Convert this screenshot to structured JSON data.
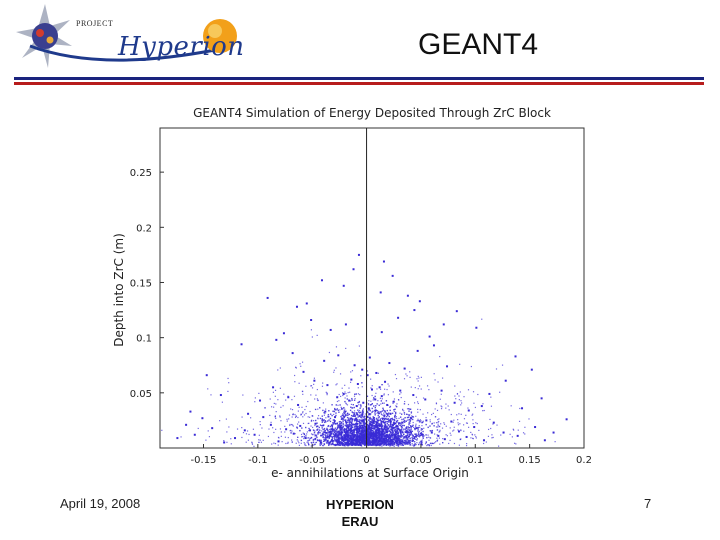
{
  "slide": {
    "title": "GEANT4",
    "logo": {
      "project_text": "PROJECT",
      "name_text": "Hyperion"
    },
    "rule_colors": [
      "#1a237e",
      "#b71c1c"
    ]
  },
  "footer": {
    "date": "April 19, 2008",
    "center_line1": "HYPERION",
    "center_line2": "ERAU",
    "page_number": "7"
  },
  "chart_data": {
    "type": "scatter",
    "title": "GEANT4 Simulation of Energy Deposited Through ZrC Block",
    "xlabel": "e- annihilations at Surface Origin",
    "ylabel": "Depth into ZrC (m)",
    "xlim": [
      -0.19,
      0.2
    ],
    "ylim": [
      0,
      0.29
    ],
    "xticks": [
      -0.15,
      -0.1,
      -0.05,
      0,
      0.05,
      0.1,
      0.15,
      0.2
    ],
    "xtick_labels": [
      "-0.15",
      "-0.1",
      "-0.05",
      "0",
      "0.05",
      "0.1",
      "0.15",
      "0.2"
    ],
    "yticks": [
      0.05,
      0.1,
      0.15,
      0.2,
      0.25
    ],
    "ytick_labels": [
      "0.05",
      "0.1",
      "0.15",
      "0.2",
      "0.25"
    ],
    "point_color": "#3a2bd6",
    "reference_line_x": 0,
    "grid": false,
    "series": [
      {
        "points": [
          [
            0.0,
            0.012
          ],
          [
            0.004,
            0.021
          ],
          [
            -0.006,
            0.008
          ],
          [
            0.011,
            0.017
          ],
          [
            -0.013,
            0.026
          ],
          [
            0.018,
            0.009
          ],
          [
            -0.019,
            0.014
          ],
          [
            0.022,
            0.031
          ],
          [
            -0.024,
            0.019
          ],
          [
            0.028,
            0.006
          ],
          [
            -0.029,
            0.028
          ],
          [
            0.033,
            0.023
          ],
          [
            -0.034,
            0.011
          ],
          [
            0.037,
            0.015
          ],
          [
            -0.038,
            0.033
          ],
          [
            0.041,
            0.027
          ],
          [
            -0.042,
            0.005
          ],
          [
            0.046,
            0.018
          ],
          [
            -0.047,
            0.022
          ],
          [
            0.051,
            0.012
          ],
          [
            -0.052,
            0.016
          ],
          [
            0.055,
            0.025
          ],
          [
            -0.056,
            0.009
          ],
          [
            0.06,
            0.014
          ],
          [
            -0.061,
            0.02
          ],
          [
            0.002,
            0.036
          ],
          [
            -0.003,
            0.041
          ],
          [
            0.008,
            0.044
          ],
          [
            -0.009,
            0.038
          ],
          [
            0.014,
            0.047
          ],
          [
            -0.016,
            0.043
          ],
          [
            0.019,
            0.039
          ],
          [
            -0.021,
            0.049
          ],
          [
            0.025,
            0.042
          ],
          [
            -0.027,
            0.046
          ],
          [
            0.005,
            0.053
          ],
          [
            -0.008,
            0.058
          ],
          [
            0.012,
            0.055
          ],
          [
            -0.014,
            0.062
          ],
          [
            0.017,
            0.06
          ],
          [
            0.001,
            0.066
          ],
          [
            -0.004,
            0.071
          ],
          [
            0.009,
            0.068
          ],
          [
            -0.011,
            0.075
          ],
          [
            0.003,
            0.082
          ],
          [
            0.066,
            0.011
          ],
          [
            -0.067,
            0.013
          ],
          [
            0.072,
            0.008
          ],
          [
            -0.074,
            0.017
          ],
          [
            0.078,
            0.024
          ],
          [
            -0.081,
            0.006
          ],
          [
            0.085,
            0.015
          ],
          [
            -0.088,
            0.021
          ],
          [
            0.092,
            0.01
          ],
          [
            -0.095,
            0.028
          ],
          [
            0.099,
            0.019
          ],
          [
            -0.103,
            0.012
          ],
          [
            0.108,
            0.007
          ],
          [
            -0.112,
            0.016
          ],
          [
            0.117,
            0.023
          ],
          [
            -0.121,
            0.009
          ],
          [
            0.126,
            0.014
          ],
          [
            -0.131,
            0.005
          ],
          [
            0.139,
            0.011
          ],
          [
            -0.142,
            0.018
          ],
          [
            0.031,
            0.052
          ],
          [
            -0.036,
            0.057
          ],
          [
            0.043,
            0.048
          ],
          [
            -0.048,
            0.061
          ],
          [
            0.054,
            0.044
          ],
          [
            -0.063,
            0.039
          ],
          [
            0.069,
            0.052
          ],
          [
            -0.072,
            0.046
          ],
          [
            0.081,
            0.041
          ],
          [
            -0.086,
            0.055
          ],
          [
            0.094,
            0.034
          ],
          [
            -0.098,
            0.043
          ],
          [
            0.106,
            0.038
          ],
          [
            -0.109,
            0.031
          ],
          [
            0.113,
            0.049
          ],
          [
            0.021,
            0.077
          ],
          [
            -0.026,
            0.084
          ],
          [
            0.035,
            0.072
          ],
          [
            -0.039,
            0.079
          ],
          [
            0.047,
            0.088
          ],
          [
            -0.058,
            0.069
          ],
          [
            0.062,
            0.093
          ],
          [
            -0.068,
            0.086
          ],
          [
            0.074,
            0.074
          ],
          [
            -0.083,
            0.098
          ],
          [
            0.014,
            0.105
          ],
          [
            -0.019,
            0.112
          ],
          [
            0.029,
            0.118
          ],
          [
            -0.033,
            0.107
          ],
          [
            0.044,
            0.125
          ],
          [
            -0.051,
            0.116
          ],
          [
            0.058,
            0.101
          ],
          [
            -0.064,
            0.128
          ],
          [
            0.071,
            0.112
          ],
          [
            -0.076,
            0.104
          ],
          [
            0.013,
            0.141
          ],
          [
            -0.021,
            0.147
          ],
          [
            0.038,
            0.138
          ],
          [
            -0.041,
            0.152
          ],
          [
            0.049,
            0.133
          ],
          [
            -0.055,
            0.131
          ],
          [
            0.024,
            0.156
          ],
          [
            -0.012,
            0.162
          ],
          [
            0.016,
            0.169
          ],
          [
            -0.007,
            0.175
          ],
          [
            0.083,
            0.124
          ],
          [
            -0.091,
            0.136
          ],
          [
            0.101,
            0.109
          ],
          [
            -0.115,
            0.094
          ],
          [
            0.128,
            0.061
          ],
          [
            -0.134,
            0.048
          ],
          [
            0.143,
            0.036
          ],
          [
            -0.151,
            0.027
          ],
          [
            0.155,
            0.019
          ],
          [
            -0.158,
            0.012
          ],
          [
            0.161,
            0.045
          ],
          [
            -0.162,
            0.033
          ],
          [
            0.164,
            0.007
          ],
          [
            -0.166,
            0.021
          ],
          [
            0.172,
            0.014
          ],
          [
            0.184,
            0.026
          ],
          [
            -0.174,
            0.009
          ],
          [
            0.152,
            0.071
          ],
          [
            -0.147,
            0.066
          ],
          [
            0.137,
            0.083
          ]
        ]
      }
    ]
  }
}
